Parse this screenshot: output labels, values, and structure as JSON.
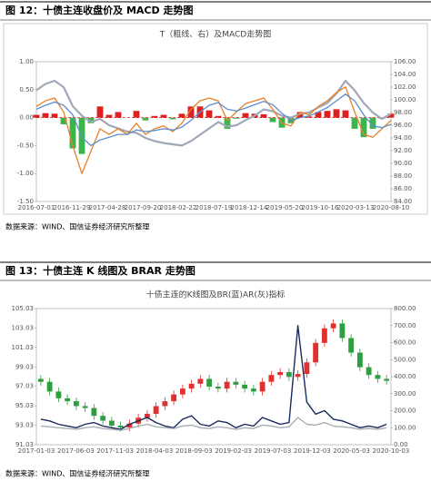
{
  "figures": [
    {
      "caption": "图 12：十债主连收盘价及 MACD 走势图",
      "source": "数据来源：WIND、国信证券经济研究所整理"
    },
    {
      "caption": "图 13：十债主连 K 线图及 BRAR 走势图",
      "source": "数据来源：WIND、国信证券经济研究所整理"
    }
  ],
  "chart_data": [
    {
      "type": "line",
      "title": "T（粗线、右）及MACD走势图",
      "x_labels": [
        "2016-07-01",
        "2016-11-29",
        "2017-04-28",
        "2017-09-20",
        "2018-02-22",
        "2018-07-19",
        "2018-12-14",
        "2019-05-20",
        "2019-10-16",
        "2020-03-13",
        "2020-08-10"
      ],
      "ylim": [
        -1.5,
        1
      ],
      "yticks": [
        {
          "value": -1.5,
          "label": "-1.50"
        },
        {
          "value": -1,
          "label": "-1.00"
        },
        {
          "value": -0.5,
          "label": "-0.50"
        },
        {
          "value": 0,
          "label": "0.00"
        },
        {
          "value": 0.5,
          "label": "0.50"
        },
        {
          "value": 1,
          "label": "1.00"
        }
      ],
      "y2lim": [
        84,
        106
      ],
      "y2ticks": [
        {
          "value": 84,
          "label": "84.00"
        },
        {
          "value": 86,
          "label": "86.00"
        },
        {
          "value": 88,
          "label": "88.00"
        },
        {
          "value": 90,
          "label": "90.00"
        },
        {
          "value": 92,
          "label": "92.00"
        },
        {
          "value": 94,
          "label": "94.00"
        },
        {
          "value": 96,
          "label": "96.00"
        },
        {
          "value": 98,
          "label": "98.00"
        },
        {
          "value": 100,
          "label": "100.00"
        },
        {
          "value": 102,
          "label": "102.00"
        },
        {
          "value": 104,
          "label": "104.00"
        },
        {
          "value": 106,
          "label": "106.00"
        }
      ],
      "histogram": {
        "positive_color": "#e0201e",
        "negative_color": "#3cb44b",
        "values": [
          0.05,
          0.08,
          0.07,
          -0.12,
          -0.55,
          -0.65,
          -0.1,
          0.2,
          0.05,
          0.1,
          0,
          0.12,
          -0.05,
          0.03,
          0.05,
          -0.03,
          0.07,
          0.2,
          0.2,
          0.13,
          0.03,
          -0.2,
          -0.02,
          0.08,
          0.07,
          0.06,
          -0.08,
          -0.18,
          -0.1,
          0.1,
          0.02,
          0.1,
          0.12,
          0.15,
          0.13,
          -0.2,
          -0.35,
          -0.2,
          -0.02,
          0.07
        ]
      },
      "series": [
        {
          "color": "#a0a8b8",
          "axis": "y2",
          "width": 2.2,
          "values": [
            101.5,
            102.5,
            103,
            102,
            99,
            97.5,
            96.5,
            97,
            96,
            95.5,
            95,
            94.8,
            94,
            93.5,
            93.2,
            93,
            92.8,
            93.5,
            94.5,
            95.5,
            96.5,
            95.8,
            96,
            96.8,
            97.5,
            98.5,
            98.2,
            97.5,
            97.2,
            97.8,
            98,
            98.8,
            99.5,
            101,
            103,
            101.5,
            99.5,
            98,
            97,
            97.8
          ]
        },
        {
          "color": "#e8802a",
          "width": 1.3,
          "values": [
            0.2,
            0.3,
            0.35,
            0.1,
            -0.5,
            -1.0,
            -0.6,
            -0.2,
            -0.3,
            -0.2,
            -0.3,
            -0.1,
            -0.3,
            -0.2,
            -0.15,
            -0.25,
            -0.1,
            0.15,
            0.3,
            0.35,
            0.3,
            -0.05,
            0.1,
            0.25,
            0.3,
            0.35,
            0.15,
            -0.1,
            -0.15,
            0.1,
            0.05,
            0.2,
            0.3,
            0.45,
            0.55,
            0.1,
            -0.3,
            -0.35,
            -0.2,
            -0.05
          ]
        },
        {
          "color": "#5b8fd0",
          "width": 1.3,
          "values": [
            0.15,
            0.22,
            0.28,
            0.22,
            0.05,
            -0.35,
            -0.5,
            -0.4,
            -0.35,
            -0.3,
            -0.3,
            -0.22,
            -0.25,
            -0.23,
            -0.2,
            -0.22,
            -0.17,
            -0.05,
            0.1,
            0.22,
            0.27,
            0.15,
            0.12,
            0.17,
            0.23,
            0.29,
            0.23,
            0.08,
            -0.05,
            0.0,
            0.03,
            0.1,
            0.18,
            0.3,
            0.42,
            0.3,
            0.05,
            -0.15,
            -0.18,
            -0.12
          ]
        }
      ]
    },
    {
      "type": "candlestick",
      "title": "十债主连的K线图及BR(蓝)AR(灰)指标",
      "x_labels": [
        "2017-01-03",
        "2017-06-03",
        "2017-11-03",
        "2018-04-03",
        "2018-09-03",
        "2019-02-03",
        "2019-07-03",
        "2019-12-03",
        "2020-05-03",
        "2020-10-03"
      ],
      "ylim": [
        91.03,
        105.03
      ],
      "yticks": [
        91.03,
        93.03,
        95.03,
        97.03,
        99.03,
        101.03,
        103.03,
        105.03
      ],
      "y2lim": [
        0,
        800
      ],
      "y2ticks": [
        {
          "value": 0,
          "label": "0.00"
        },
        {
          "value": 100,
          "label": "100.00"
        },
        {
          "value": 200,
          "label": "200.00"
        },
        {
          "value": 300,
          "label": "300.00"
        },
        {
          "value": 400,
          "label": "400.00"
        },
        {
          "value": 500,
          "label": "500.00"
        },
        {
          "value": 600,
          "label": "600.00"
        },
        {
          "value": 700,
          "label": "700.00"
        },
        {
          "value": 800,
          "label": "800.00"
        }
      ],
      "up_color": "#e03030",
      "down_color": "#2e9e40",
      "open": [
        97.8,
        97.5,
        96.5,
        95.8,
        95.5,
        95.0,
        94.8,
        94.0,
        93.5,
        93.0,
        92.8,
        93.2,
        93.8,
        94.2,
        95.0,
        95.5,
        96.2,
        96.8,
        97.3,
        97.8,
        97.0,
        96.8,
        97.5,
        97.2,
        96.8,
        96.5,
        97.5,
        98.2,
        98.5,
        98.0,
        98.3,
        99.5,
        101.5,
        103.0,
        103.5,
        102.0,
        100.5,
        99.0,
        98.2,
        97.8
      ],
      "high": [
        98.2,
        97.9,
        96.9,
        96.2,
        95.9,
        95.4,
        95.2,
        94.4,
        93.9,
        93.4,
        93.6,
        94.2,
        94.6,
        95.4,
        95.9,
        96.6,
        97.2,
        97.7,
        98.2,
        98.2,
        97.4,
        97.9,
        97.9,
        97.6,
        97.2,
        97.9,
        98.6,
        98.9,
        98.9,
        98.7,
        99.9,
        101.9,
        103.4,
        103.9,
        103.9,
        102.4,
        100.9,
        99.4,
        98.6,
        98.2
      ],
      "low": [
        97.1,
        96.1,
        95.4,
        95.1,
        94.6,
        94.4,
        93.6,
        93.1,
        92.6,
        92.4,
        92.4,
        92.8,
        93.4,
        93.8,
        94.6,
        95.1,
        95.8,
        96.4,
        96.9,
        96.6,
        96.4,
        96.4,
        96.8,
        96.4,
        96.1,
        96.1,
        97.1,
        97.8,
        97.6,
        97.6,
        97.9,
        99.1,
        101.1,
        102.6,
        101.6,
        100.1,
        98.6,
        97.8,
        97.4,
        97.2
      ],
      "close": [
        97.5,
        96.5,
        95.8,
        95.5,
        95.0,
        94.8,
        94.0,
        93.5,
        93.0,
        92.8,
        93.2,
        93.8,
        94.2,
        95.0,
        95.5,
        96.2,
        96.8,
        97.3,
        97.8,
        97.0,
        96.8,
        97.5,
        97.2,
        96.8,
        96.5,
        97.5,
        98.2,
        98.5,
        98.0,
        98.3,
        99.5,
        101.5,
        103.0,
        103.5,
        102.0,
        100.5,
        99.0,
        98.2,
        97.8,
        97.6
      ],
      "series": [
        {
          "color": "#1a2a5e",
          "axis": "y2",
          "width": 1.4,
          "values": [
            150,
            140,
            120,
            110,
            100,
            120,
            130,
            110,
            100,
            90,
            120,
            140,
            160,
            130,
            110,
            100,
            150,
            170,
            120,
            110,
            140,
            130,
            100,
            120,
            110,
            160,
            140,
            120,
            130,
            700,
            250,
            180,
            200,
            150,
            140,
            120,
            100,
            110,
            100,
            120
          ]
        },
        {
          "color": "#a8acb4",
          "axis": "y2",
          "width": 1.4,
          "values": [
            110,
            105,
            100,
            95,
            90,
            100,
            105,
            95,
            90,
            85,
            95,
            110,
            120,
            105,
            100,
            95,
            110,
            115,
            100,
            95,
            105,
            100,
            90,
            100,
            95,
            115,
            110,
            100,
            105,
            160,
            120,
            115,
            130,
            110,
            105,
            100,
            90,
            95,
            90,
            100
          ]
        }
      ]
    }
  ]
}
